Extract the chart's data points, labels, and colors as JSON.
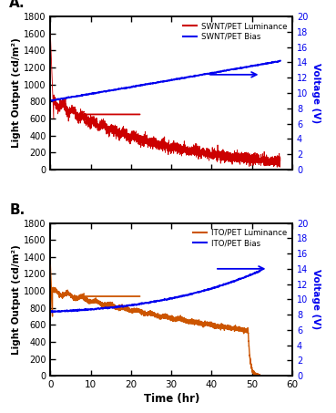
{
  "panel_A": {
    "label": "A.",
    "luminance_color": "#cc0000",
    "bias_color": "#0000ee",
    "legend_lum": "SWNT/PET Luminance",
    "legend_bias": "SWNT/PET Bias"
  },
  "panel_B": {
    "label": "B.",
    "luminance_color": "#cc5500",
    "bias_color": "#0000ee",
    "legend_lum": "ITO/PET Luminance",
    "legend_bias": "ITO/PET Bias"
  },
  "ylabel_left": "Light Output (cd/m²)",
  "ylabel_right": "Voltage (V)",
  "xlabel": "Time (hr)",
  "xlim": [
    0,
    60
  ],
  "ylim_left": [
    0,
    1800
  ],
  "ylim_right": [
    0,
    20
  ],
  "xticks": [
    0,
    10,
    20,
    30,
    40,
    50,
    60
  ],
  "yticks_left": [
    0,
    200,
    400,
    600,
    800,
    1000,
    1200,
    1400,
    1600,
    1800
  ],
  "yticks_right": [
    0,
    2,
    4,
    6,
    8,
    10,
    12,
    14,
    16,
    18,
    20
  ],
  "background_color": "white",
  "plot_bg": "white"
}
